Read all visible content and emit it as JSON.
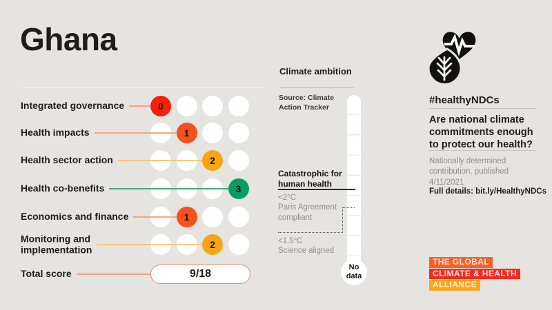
{
  "title": "Ghana",
  "scorecard": {
    "rows": [
      {
        "label": "Integrated governance",
        "score": 0,
        "max": 3,
        "color": "#f42108",
        "line_color": "#f59a8c"
      },
      {
        "label": "Health impacts",
        "score": 1,
        "max": 3,
        "color": "#f4511c",
        "line_color": "#f6a486"
      },
      {
        "label": "Health sector action",
        "score": 2,
        "max": 3,
        "color": "#f8a416",
        "line_color": "#f7ca7c"
      },
      {
        "label": "Health co-benefits",
        "score": 3,
        "max": 3,
        "color": "#0a9b61",
        "line_color": "#43a67e"
      },
      {
        "label": "Economics and finance",
        "score": 1,
        "max": 3,
        "color": "#f4511c",
        "line_color": "#f6a486"
      },
      {
        "label": "Monitoring and\nimplementation",
        "score": 2,
        "max": 3,
        "color": "#f8a416",
        "line_color": "#f7ca7c"
      }
    ],
    "total_label": "Total score",
    "total_value": "9/18",
    "total_border_color": "#f58b63",
    "total_line_color": "#f5a388"
  },
  "thermometer": {
    "title": "Climate ambition",
    "source": "Source: Climate\nAction Tracker",
    "catastrophic": "Catastrophic for\nhuman health",
    "below2": "<2°C\nParis Agreement\ncompliant",
    "below15": "<1.5°C\nScience aligned",
    "no_data": "No\ndata"
  },
  "panel": {
    "hashtag": "#healthyNDCs",
    "question": "Are national climate\ncommitments enough\nto protect our health?",
    "ndc_info": "Nationally determined\ncontribution, published\n4/11/2021",
    "details": "Full details: bit.ly/HealthyNDCs",
    "alliance": [
      {
        "text": "THE GLOBAL",
        "bg": "#f2632b"
      },
      {
        "text": "CLIMATE & HEALTH",
        "bg": "#ee2d24"
      },
      {
        "text": "ALLIANCE",
        "bg": "#f9a71f"
      }
    ]
  },
  "colors": {
    "background": "#e5e4e1",
    "score_0": "#f42208",
    "score_1": "#f4511c",
    "score_2": "#f8a416",
    "score_3": "#0a9b61"
  },
  "chart_data": {
    "type": "table",
    "title": "Ghana",
    "categories": [
      "Integrated governance",
      "Health impacts",
      "Health sector action",
      "Health co-benefits",
      "Economics and finance",
      "Monitoring and implementation"
    ],
    "values": [
      0,
      1,
      2,
      3,
      1,
      2
    ],
    "max_per_category": 3,
    "total_score": "9/18",
    "score_color_scale": {
      "0": "#f42208",
      "1": "#f4511c",
      "2": "#f8a416",
      "3": "#0a9b61"
    },
    "climate_ambition_reading": "No data",
    "climate_ambition_scale": [
      "Catastrophic for human health",
      "<2°C Paris Agreement compliant",
      "<1.5°C Science aligned"
    ],
    "source": "Climate Action Tracker"
  }
}
